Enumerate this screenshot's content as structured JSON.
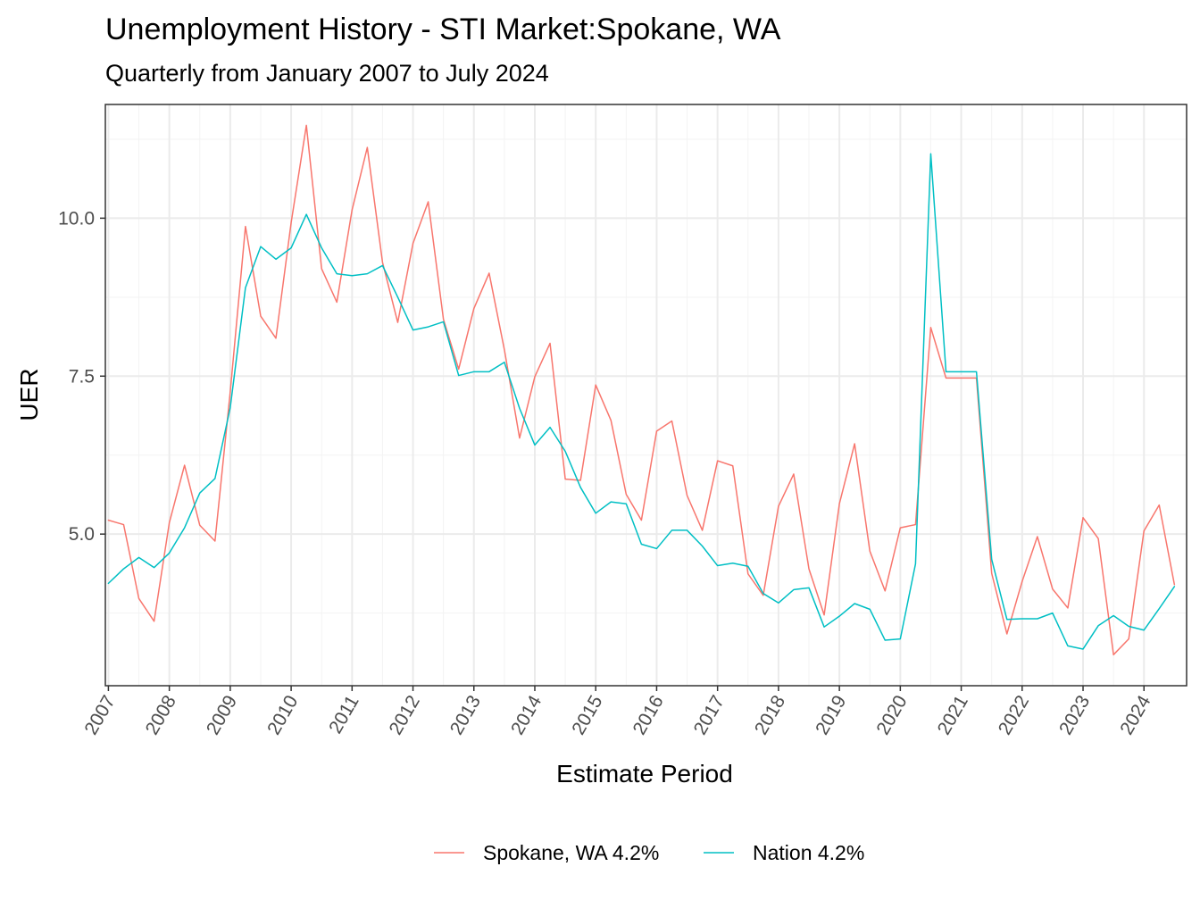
{
  "chart_data": {
    "type": "line",
    "title": "Unemployment History - STI Market:Spokane, WA",
    "subtitle": "Quarterly from January 2007 to July 2024",
    "xlabel": "Estimate Period",
    "ylabel": "UER",
    "x_start_year": 2007,
    "x_tick_labels": [
      "2007",
      "2008",
      "2009",
      "2010",
      "2011",
      "2012",
      "2013",
      "2014",
      "2015",
      "2016",
      "2017",
      "2018",
      "2019",
      "2020",
      "2021",
      "2022",
      "2023",
      "2024"
    ],
    "y_ticks": [
      5.0,
      7.5,
      10.0
    ],
    "y_tick_labels": [
      "5.0",
      "7.5",
      "10.0"
    ],
    "xlim": [
      2006.95,
      2024.7
    ],
    "ylim": [
      2.6,
      11.8
    ],
    "grid": true,
    "legend_position": "bottom",
    "series": [
      {
        "name": "Spokane, WA 4.2%",
        "color": "#f8766d",
        "values": [
          5.22,
          5.15,
          3.98,
          3.62,
          5.18,
          6.09,
          5.14,
          4.89,
          7.25,
          9.87,
          8.45,
          8.1,
          9.93,
          11.47,
          9.2,
          8.67,
          10.13,
          11.12,
          9.3,
          8.35,
          9.6,
          10.26,
          8.4,
          7.61,
          8.57,
          9.13,
          7.92,
          6.52,
          7.49,
          8.02,
          5.87,
          5.85,
          7.36,
          6.8,
          5.63,
          5.22,
          6.63,
          6.79,
          5.61,
          5.06,
          6.16,
          6.08,
          4.37,
          4.03,
          5.44,
          5.95,
          4.45,
          3.72,
          5.48,
          6.43,
          4.73,
          4.1,
          5.1,
          5.15,
          8.27,
          7.47,
          7.47,
          7.47,
          4.38,
          3.42,
          4.25,
          4.96,
          4.13,
          3.83,
          5.26,
          4.93,
          3.09,
          3.34,
          5.05,
          5.46,
          4.2
        ]
      },
      {
        "name": "Nation 4.2%",
        "color": "#00bfc4",
        "values": [
          4.22,
          4.45,
          4.63,
          4.47,
          4.7,
          5.1,
          5.65,
          5.88,
          7.0,
          8.9,
          9.55,
          9.35,
          9.53,
          10.06,
          9.53,
          9.12,
          9.09,
          9.12,
          9.25,
          8.75,
          8.23,
          8.28,
          8.36,
          7.51,
          7.57,
          7.57,
          7.72,
          6.99,
          6.41,
          6.69,
          6.31,
          5.74,
          5.33,
          5.51,
          5.48,
          4.84,
          4.77,
          5.06,
          5.06,
          4.81,
          4.5,
          4.54,
          4.49,
          4.06,
          3.91,
          4.12,
          4.15,
          3.53,
          3.7,
          3.9,
          3.81,
          3.32,
          3.34,
          4.53,
          11.02,
          7.57,
          7.57,
          7.57,
          4.6,
          3.65,
          3.66,
          3.66,
          3.75,
          3.23,
          3.18,
          3.55,
          3.71,
          3.54,
          3.48,
          3.82,
          4.17
        ]
      }
    ]
  }
}
